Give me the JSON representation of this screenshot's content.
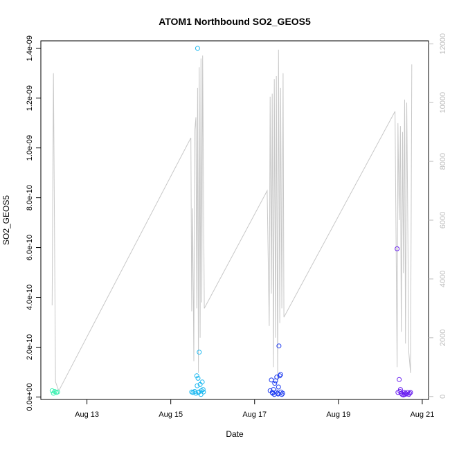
{
  "chart_data": {
    "type": "scatter",
    "title": "ATOM1 Northbound SO2_GEOS5",
    "xlabel": "Date",
    "ylabel": "SO2_GEOS5",
    "x_ticks": [
      "Aug 13",
      "Aug 15",
      "Aug 17",
      "Aug 19",
      "Aug 21"
    ],
    "x_tick_days": [
      13,
      15,
      17,
      19,
      21
    ],
    "xlim_days": [
      11.9,
      21.15
    ],
    "y_ticks": [
      "0.0e+00",
      "2.0e-10",
      "4.0e-10",
      "6.0e-10",
      "8.0e-10",
      "1.0e-09",
      "1.2e-09",
      "1.4e-09"
    ],
    "y_tick_values": [
      0,
      2e-10,
      4e-10,
      6e-10,
      8e-10,
      1e-09,
      1.2e-09,
      1.4e-09
    ],
    "ylim": [
      -1e-11,
      1.43e-09
    ],
    "y2_ticks": [
      "0",
      "2000",
      "4000",
      "6000",
      "8000",
      "10000",
      "12000"
    ],
    "y2_tick_values": [
      0,
      2000,
      4000,
      6000,
      8000,
      10000,
      12000
    ],
    "y2lim": [
      -100,
      12100
    ],
    "grid": false,
    "line_color": "#c8c8c8",
    "series": [
      {
        "values_day": [
          12.17,
          12.2,
          12.23,
          12.27,
          12.3
        ],
        "values_y": [
          2.5e-11,
          1.5e-11,
          2.2e-11,
          1.8e-11,
          2e-11
        ],
        "color": "#39f0b0"
      },
      {
        "values_day": [
          15.5,
          15.53,
          15.57,
          15.6,
          15.62,
          15.63,
          15.65,
          15.67,
          15.68,
          15.7,
          15.72,
          15.73,
          15.75,
          15.77,
          15.78,
          15.64,
          15.66
        ],
        "values_y": [
          2e-11,
          1.8e-11,
          2.2e-11,
          1.5e-11,
          8.5e-11,
          4.5e-11,
          7.5e-11,
          2e-11,
          1.8e-10,
          5e-11,
          1e-11,
          2.5e-11,
          6e-11,
          3e-11,
          2e-11,
          1.4e-09,
          1.8e-11
        ],
        "color": "#1ab8f0"
      },
      {
        "values_day": [
          17.37,
          17.4,
          17.43,
          17.45,
          17.47,
          17.5,
          17.52,
          17.53,
          17.55,
          17.57,
          17.58,
          17.6,
          17.62,
          17.63,
          17.65,
          17.67,
          17.42,
          17.48,
          17.56
        ],
        "values_y": [
          2.5e-11,
          6.8e-11,
          1.5e-11,
          3e-11,
          1e-11,
          6.5e-11,
          2e-11,
          8e-11,
          1.5e-11,
          4e-11,
          2.05e-10,
          8.5e-11,
          9e-11,
          2e-11,
          1e-11,
          1.5e-11,
          1.8e-11,
          5.5e-11,
          1.2e-11
        ],
        "color": "#1e3cf0"
      },
      {
        "values_day": [
          20.4,
          20.42,
          20.45,
          20.48,
          20.5,
          20.52,
          20.55,
          20.57,
          20.6,
          20.62,
          20.65,
          20.68,
          20.7,
          20.72,
          20.47,
          20.58
        ],
        "values_y": [
          5.95e-10,
          1.8e-11,
          7e-11,
          3e-11,
          1.5e-11,
          1e-11,
          8e-12,
          1.8e-11,
          1.5e-11,
          1.2e-11,
          1.8e-11,
          1e-11,
          1.5e-11,
          1.8e-11,
          2.2e-11,
          1e-11
        ],
        "color": "#6a1ff0"
      }
    ],
    "secondary_line": {
      "days": [
        12.17,
        12.2,
        12.25,
        12.3,
        12.33,
        15.48,
        15.5,
        15.52,
        15.55,
        15.57,
        15.6,
        15.62,
        15.64,
        15.66,
        15.68,
        15.7,
        15.72,
        15.74,
        15.76,
        15.8,
        17.3,
        17.35,
        17.37,
        17.4,
        17.42,
        17.45,
        17.47,
        17.5,
        17.52,
        17.55,
        17.57,
        17.6,
        17.62,
        17.65,
        17.68,
        17.7,
        20.35,
        20.4,
        20.42,
        20.45,
        20.48,
        20.5,
        20.53,
        20.55,
        20.58,
        20.6,
        20.63,
        20.65,
        20.68,
        20.72,
        20.75
      ],
      "values": [
        3100,
        11000,
        500,
        300,
        200,
        8800,
        2900,
        6400,
        1200,
        9000,
        9500,
        3000,
        10500,
        800,
        11200,
        2000,
        11500,
        3200,
        11600,
        3000,
        7000,
        2400,
        10200,
        3500,
        10300,
        1000,
        10800,
        2000,
        10900,
        500,
        11800,
        2500,
        10500,
        3000,
        11000,
        2700,
        9700,
        1000,
        9300,
        6000,
        9200,
        2200,
        9000,
        4200,
        10100,
        1800,
        10000,
        6800,
        1500,
        800,
        11300
      ]
    }
  }
}
